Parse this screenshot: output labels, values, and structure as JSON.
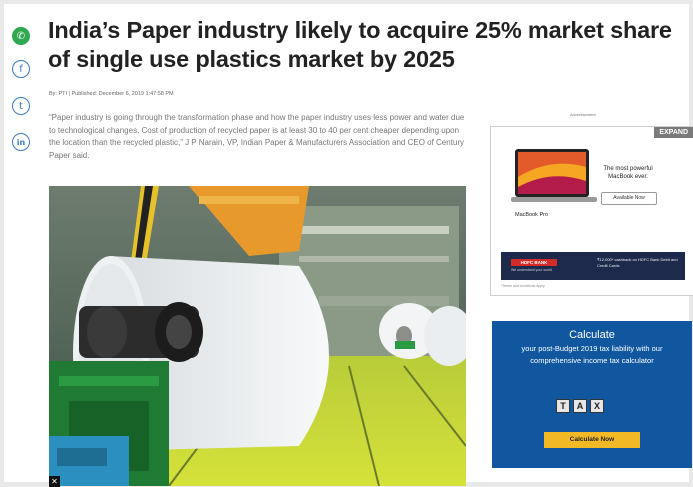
{
  "article": {
    "headline": "India’s Paper industry likely to acquire 25% market share of single use plastics market by 2025",
    "byline": "By: PTI | Published: December 6, 2019 1:47:58 PM",
    "lead": "“Paper industry is going through the transformation phase and how the paper industry uses less power and water due to technological changes. Cost of production of recycled paper is at least 30 to 40 per cent cheaper depending upon the location than the recycled plastic,” J P Narain, VP, Indian Paper & Manufacturers Association and CEO of Century Paper said."
  },
  "share": {
    "whatsapp_icon": "whatsapp-icon",
    "facebook_icon": "facebook-icon",
    "twitter_icon": "twitter-icon",
    "linkedin_icon": "linkedin-icon",
    "facebook_glyph": "f",
    "twitter_glyph": "t",
    "linkedin_glyph": "in"
  },
  "photo": {
    "close_glyph": "✕"
  },
  "ad_macbook": {
    "label": "Advertisement",
    "expand": "EXPAND",
    "brand": "MacBook Pro",
    "tagline": "The most powerful MacBook ever.",
    "button": "Available Now",
    "bank_logo": "HDFC BANK",
    "bank_sub": "We understand your world",
    "bank_offer": "₹12,000* cashback on HDFC Bank Debit and Credit Cards",
    "footnote": "*Terms and conditions apply"
  },
  "ad_tax": {
    "title": "Calculate",
    "text": "your post-Budget 2019 tax liability with our comprehensive income tax calculator",
    "tiles": [
      "T",
      "A",
      "X"
    ],
    "button": "Calculate Now"
  },
  "colors": {
    "headline": "#222222",
    "ad_blue": "#10579f",
    "ad_button": "#f2b927",
    "whatsapp": "#2fa84f"
  }
}
